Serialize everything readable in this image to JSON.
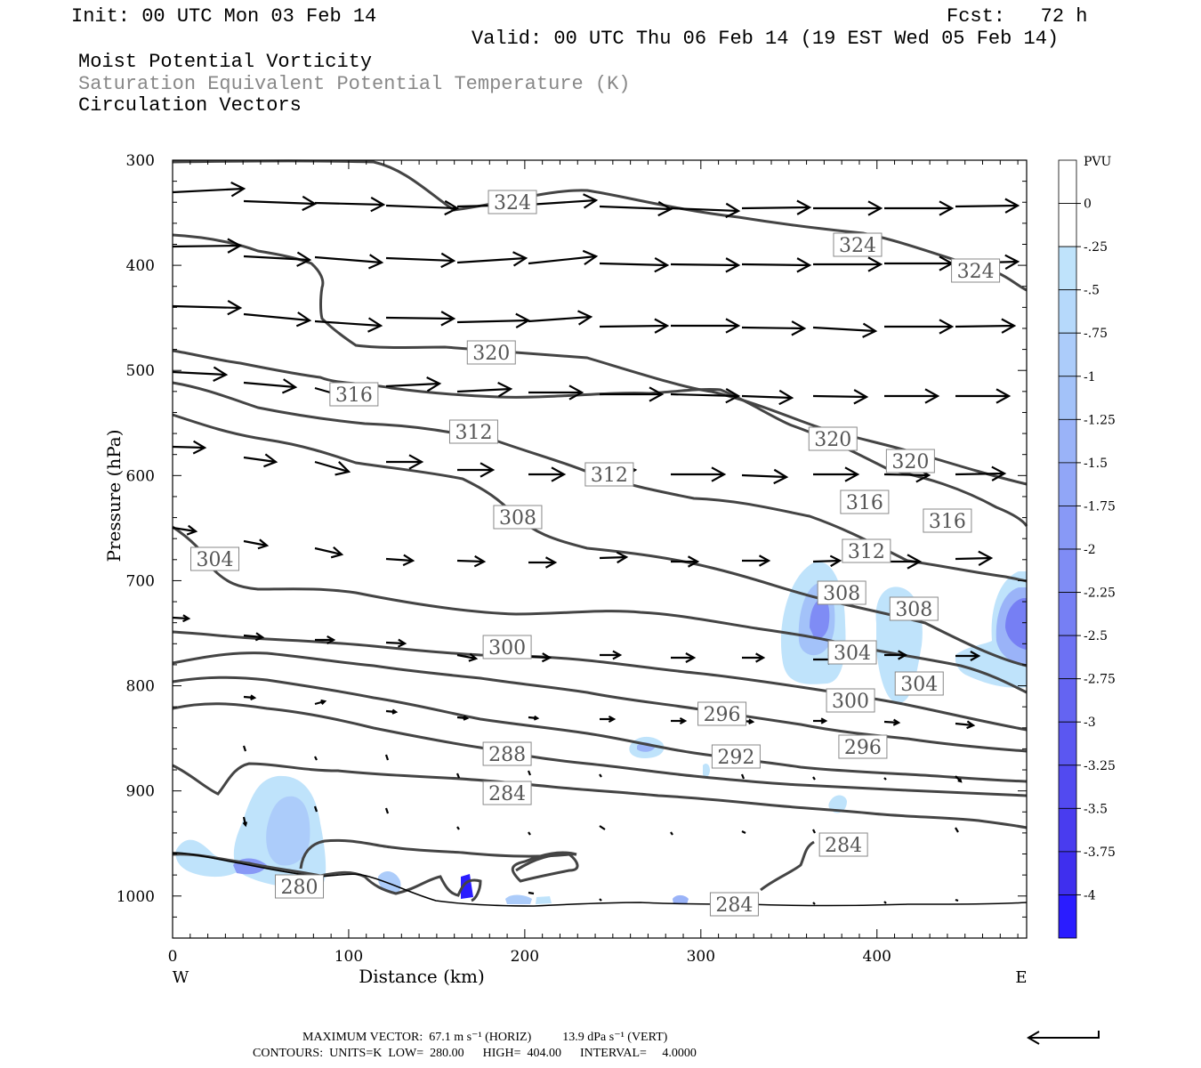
{
  "header": {
    "init": "Init: 00 UTC Mon 03 Feb 14",
    "fcst": "Fcst:   72 h",
    "valid": "Valid: 00 UTC Thu 06 Feb 14 (19 EST Wed 05 Feb 14)",
    "fields": [
      "Moist Potential Vorticity",
      "Saturation Equivalent Potential Temperature (K)",
      "Circulation Vectors"
    ]
  },
  "colors": {
    "contour": "#444444",
    "vector": "#000000",
    "grey_text": "#888888"
  },
  "chart_data": {
    "type": "cross-section",
    "xlabel": "Distance (km)",
    "ylabel": "Pressure (hPa)",
    "xlim": [
      0,
      485
    ],
    "ylim": [
      1040,
      300
    ],
    "x_ticks": [
      0,
      100,
      200,
      300,
      400
    ],
    "y_ticks": [
      300,
      400,
      500,
      600,
      700,
      800,
      900,
      1000
    ],
    "x_end_labels": {
      "left": "W",
      "right": "E"
    },
    "colorbar": {
      "unit": "PVU",
      "labels": [
        "0",
        "-.25",
        "-.5",
        "-.75",
        "-1",
        "-1.25",
        "-1.5",
        "-1.75",
        "-2",
        "-2.25",
        "-2.5",
        "-2.75",
        "-3",
        "-3.25",
        "-3.5",
        "-3.75",
        "-4"
      ],
      "colors": [
        "#ffffff",
        "#ffffff",
        "#bfe3fb",
        "#b6d9fb",
        "#acccfa",
        "#a3c2f9",
        "#9ab3f8",
        "#91a6f7",
        "#8899f6",
        "#7f8cf5",
        "#767ff4",
        "#6d71f3",
        "#6464f2",
        "#5b57f1",
        "#524af0",
        "#493cef",
        "#3f2fee",
        "#2a1cff"
      ]
    },
    "contour_levels": [
      {
        "label": "324",
        "x": 193
      },
      {
        "label": "324",
        "x": 389
      },
      {
        "label": "324",
        "x": 456
      },
      {
        "label": "320",
        "x": 181
      },
      {
        "label": "320",
        "x": 375
      },
      {
        "label": "320",
        "x": 419
      },
      {
        "label": "316",
        "x": 103
      },
      {
        "label": "316",
        "x": 393
      },
      {
        "label": "316",
        "x": 440
      },
      {
        "label": "312",
        "x": 171
      },
      {
        "label": "312",
        "x": 248
      },
      {
        "label": "312",
        "x": 394
      },
      {
        "label": "308",
        "x": 196
      },
      {
        "label": "308",
        "x": 380
      },
      {
        "label": "308",
        "x": 421
      },
      {
        "label": "304",
        "x": 24
      },
      {
        "label": "304",
        "x": 386
      },
      {
        "label": "304",
        "x": 424
      },
      {
        "label": "300",
        "x": 190
      },
      {
        "label": "300",
        "x": 385
      },
      {
        "label": "296",
        "x": 312
      },
      {
        "label": "296",
        "x": 392
      },
      {
        "label": "292",
        "x": 320
      },
      {
        "label": "288",
        "x": 190
      },
      {
        "label": "284",
        "x": 190
      },
      {
        "label": "284",
        "x": 381
      },
      {
        "label": "284",
        "x": 319
      },
      {
        "label": "280",
        "x": 72
      }
    ],
    "footer": {
      "max_vector": "MAXIMUM VECTOR:  67.1 m s⁻¹ (HORIZ)          13.9 dPa s⁻¹ (VERT)",
      "contours": "CONTOURS:  UNITS=K  LOW=  280.00      HIGH=  404.00      INTERVAL=     4.0000"
    }
  }
}
